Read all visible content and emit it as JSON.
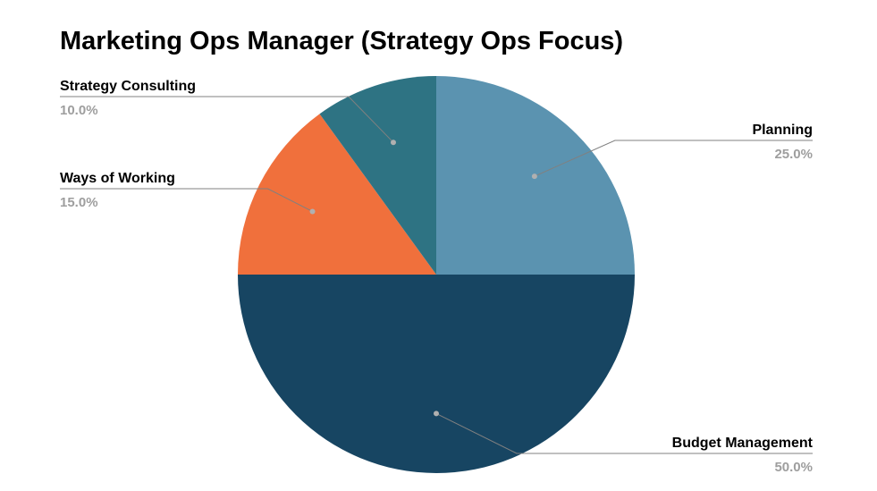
{
  "chart_data": {
    "type": "pie",
    "title": "Marketing Ops Manager (Strategy Ops Focus)",
    "categories": [
      "Planning",
      "Budget Management",
      "Ways of Working",
      "Strategy Consulting"
    ],
    "values": [
      25.0,
      50.0,
      15.0,
      10.0
    ],
    "value_labels": [
      "25.0%",
      "50.0%",
      "15.0%",
      "10.0%"
    ],
    "colors": [
      "#5b93b0",
      "#174562",
      "#f0703c",
      "#2e7383"
    ],
    "start_angle": "12 o'clock",
    "direction": "clockwise",
    "legend": "none"
  }
}
